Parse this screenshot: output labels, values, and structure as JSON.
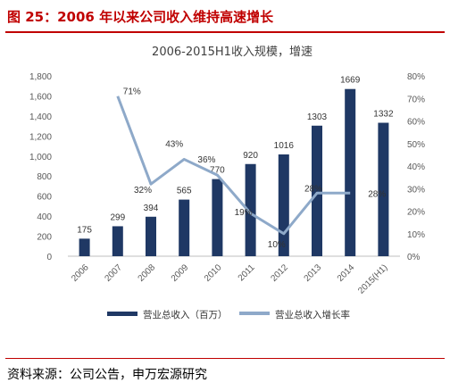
{
  "figure_title": "图 25：2006 年以来公司收入维持高速增长",
  "source_text": "资料来源：公司公告，申万宏源研究",
  "colors": {
    "bar": "#1f3864",
    "line": "#8ea9c9",
    "title": "#c00000"
  },
  "chart_data": {
    "type": "bar",
    "title": "2006-2015H1收入规模，增速",
    "categories": [
      "2006",
      "2007",
      "2008",
      "2009",
      "2010",
      "2011",
      "2012",
      "2013",
      "2014",
      "2015(H1)"
    ],
    "series": [
      {
        "name": "营业总收入（百万）",
        "type": "bar",
        "axis": "left",
        "values": [
          175,
          299,
          394,
          565,
          770,
          920,
          1016,
          1303,
          1669,
          1332
        ],
        "labels": [
          "175",
          "299",
          "394",
          "565",
          "770",
          "920",
          "1016",
          "1303",
          "1669",
          "1332"
        ]
      },
      {
        "name": "营业总收入增长率",
        "type": "line",
        "axis": "right",
        "values": [
          null,
          71,
          32,
          43,
          36,
          19,
          10,
          28,
          28,
          null
        ],
        "labels": [
          "",
          "71%",
          "32%",
          "43%",
          "36%",
          "19%",
          "10%",
          "28%",
          "28%",
          ""
        ]
      }
    ],
    "y_left": {
      "min": 0,
      "max": 1800,
      "ticks": [
        "0",
        "200",
        "400",
        "600",
        "800",
        "1,000",
        "1,200",
        "1,400",
        "1,600",
        "1,800"
      ]
    },
    "y_right": {
      "min": 0,
      "max": 80,
      "ticks": [
        "0%",
        "10%",
        "20%",
        "30%",
        "40%",
        "50%",
        "60%",
        "70%",
        "80%"
      ]
    },
    "grid": false,
    "legend": "bottom"
  }
}
